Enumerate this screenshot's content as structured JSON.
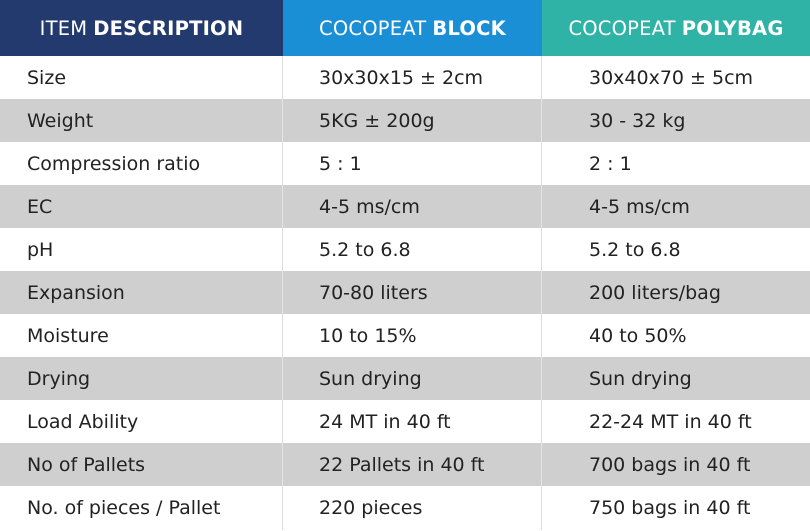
{
  "header": {
    "col1_light": "ITEM",
    "col1_bold": "DESCRIPTION",
    "col2_light": "COCOPEAT",
    "col2_bold": "BLOCK",
    "col3_light": "COCOPEAT",
    "col3_bold": "POLYBAG"
  },
  "colors": {
    "header_col1": "#233a6e",
    "header_col2": "#1a8fd6",
    "header_col3": "#2fb3a6",
    "row_alt": "#cfcfcf",
    "row_base": "#ffffff"
  },
  "rows": [
    {
      "item": "Size",
      "block": "30x30x15 ± 2cm",
      "polybag": "30x40x70 ± 5cm"
    },
    {
      "item": "Weight",
      "block": "5KG ± 200g",
      "polybag": "30 - 32 kg"
    },
    {
      "item": "Compression ratio",
      "block": "5 : 1",
      "polybag": "2 : 1"
    },
    {
      "item": "EC",
      "block": "4-5 ms/cm",
      "polybag": "4-5 ms/cm"
    },
    {
      "item": "pH",
      "block": "5.2 to 6.8",
      "polybag": "5.2 to 6.8"
    },
    {
      "item": "Expansion",
      "block": "70-80 liters",
      "polybag": "200 liters/bag"
    },
    {
      "item": "Moisture",
      "block": "10 to 15%",
      "polybag": "40 to 50%"
    },
    {
      "item": "Drying",
      "block": "Sun drying",
      "polybag": "Sun drying"
    },
    {
      "item": "Load Ability",
      "block": "24 MT in 40 ft",
      "polybag": "22-24 MT in 40 ft"
    },
    {
      "item": "No of Pallets",
      "block": "22 Pallets in 40 ft",
      "polybag": "700 bags in 40 ft"
    },
    {
      "item": "No. of pieces / Pallet",
      "block": "220 pieces",
      "polybag": "750 bags in 40 ft"
    }
  ]
}
